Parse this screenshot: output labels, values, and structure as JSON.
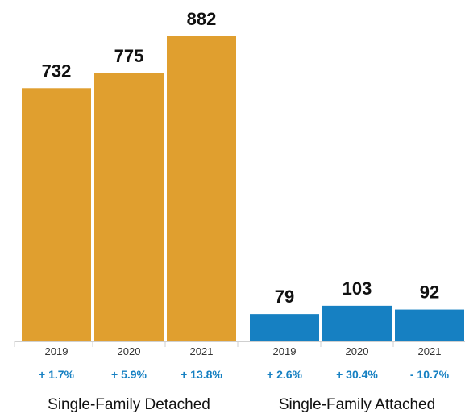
{
  "chart_data": {
    "type": "bar",
    "groups": [
      {
        "name": "Single-Family Detached",
        "color": "#E09F2F",
        "changes": [
          "+ 1.7%",
          "+ 5.9%",
          "+ 13.8%"
        ],
        "bars": [
          {
            "year": "2019",
            "value": 732
          },
          {
            "year": "2020",
            "value": 775
          },
          {
            "year": "2021",
            "value": 882
          }
        ]
      },
      {
        "name": "Single-Family Attached",
        "color": "#1680C2",
        "changes": [
          "+ 2.6%",
          "+ 30.4%",
          "- 10.7%"
        ],
        "bars": [
          {
            "year": "2019",
            "value": 79
          },
          {
            "year": "2020",
            "value": 103
          },
          {
            "year": "2021",
            "value": 92
          }
        ]
      }
    ],
    "change_color": "#1680C2",
    "ylim": [
      0,
      882
    ]
  }
}
